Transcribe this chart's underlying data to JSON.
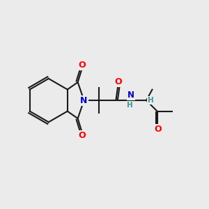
{
  "bg_color": "#ebebeb",
  "bond_color": "#1a1a1a",
  "bond_width": 1.5,
  "atom_colors": {
    "O": "#ff0000",
    "N": "#0000cc",
    "H": "#3d9999",
    "C": "#1a1a1a"
  },
  "font_size_atom": 9,
  "font_size_H": 7.5
}
